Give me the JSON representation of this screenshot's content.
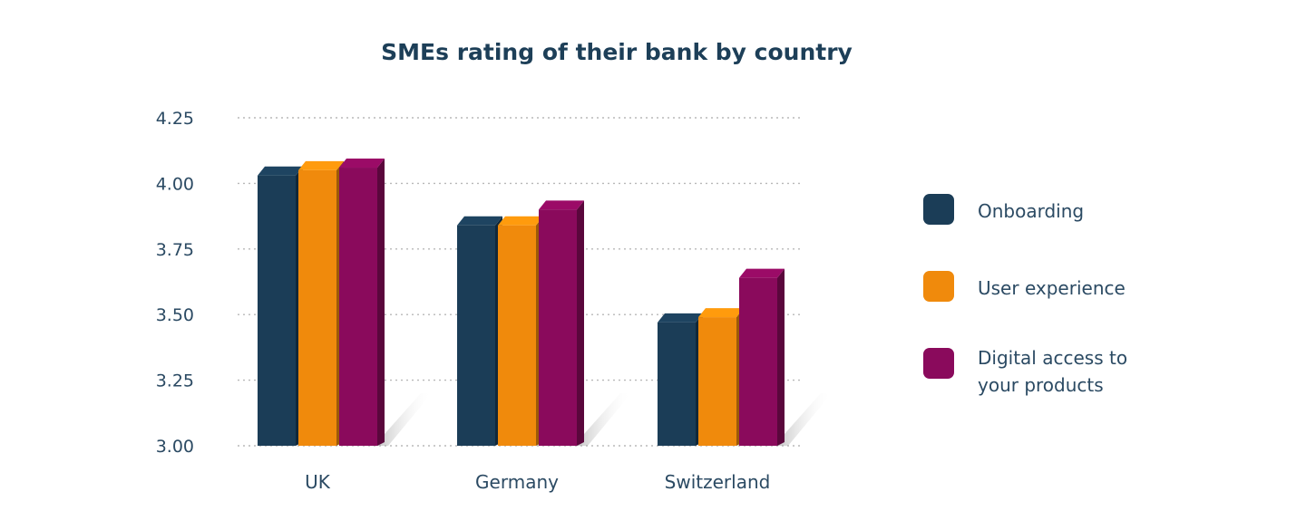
{
  "chart_data": {
    "type": "bar",
    "title": "SMEs rating of their bank by country",
    "categories": [
      "UK",
      "Germany",
      "Switzerland"
    ],
    "series": [
      {
        "name": "Onboarding",
        "color": "#1b3d57",
        "values": [
          4.03,
          3.84,
          3.47
        ]
      },
      {
        "name": "User experience",
        "color": "#f08a0c",
        "values": [
          4.05,
          3.84,
          3.49
        ]
      },
      {
        "name": "Digital access to your products",
        "color": "#8a0a5c",
        "values": [
          4.06,
          3.9,
          3.64
        ]
      }
    ],
    "ylim": [
      3.0,
      4.25
    ],
    "yticks": [
      "4.25",
      "4.00",
      "3.75",
      "3.50",
      "3.25",
      "3.00"
    ],
    "grid": true,
    "legend_position": "right"
  }
}
